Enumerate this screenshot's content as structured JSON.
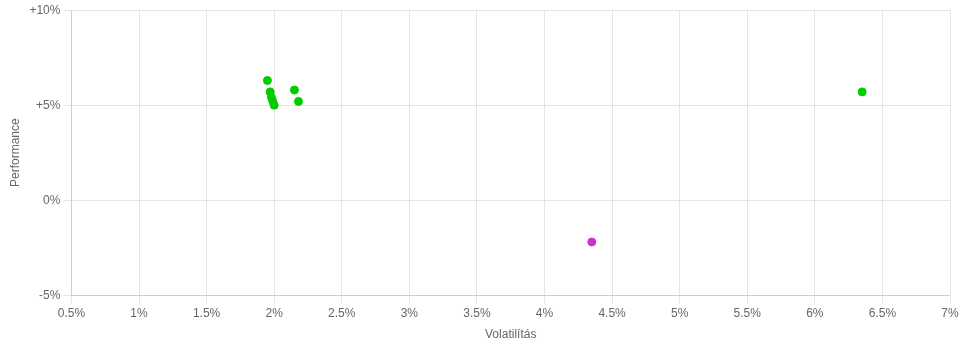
{
  "chart_data": {
    "type": "scatter",
    "xlabel": "Volatilítás",
    "ylabel": "Performance",
    "xlim": [
      0.005,
      0.07
    ],
    "ylim": [
      -0.05,
      0.1
    ],
    "xticks": [
      {
        "value": 0.005,
        "label": "0.5%"
      },
      {
        "value": 0.01,
        "label": "1%"
      },
      {
        "value": 0.015,
        "label": "1.5%"
      },
      {
        "value": 0.02,
        "label": "2%"
      },
      {
        "value": 0.025,
        "label": "2.5%"
      },
      {
        "value": 0.03,
        "label": "3%"
      },
      {
        "value": 0.035,
        "label": "3.5%"
      },
      {
        "value": 0.04,
        "label": "4%"
      },
      {
        "value": 0.045,
        "label": "4.5%"
      },
      {
        "value": 0.05,
        "label": "5%"
      },
      {
        "value": 0.055,
        "label": "5.5%"
      },
      {
        "value": 0.06,
        "label": "6%"
      },
      {
        "value": 0.065,
        "label": "6.5%"
      },
      {
        "value": 0.07,
        "label": "7%"
      }
    ],
    "yticks": [
      {
        "value": -0.05,
        "label": "-5%"
      },
      {
        "value": 0.0,
        "label": "0%"
      },
      {
        "value": 0.05,
        "label": "+5%"
      },
      {
        "value": 0.1,
        "label": "+10%"
      }
    ],
    "grid": true,
    "series": [
      {
        "color": "#00cc00",
        "x": [
          0.0195,
          0.0197,
          0.0198,
          0.0199,
          0.02,
          0.0215,
          0.0218,
          0.0635
        ],
        "values": [
          0.063,
          0.057,
          0.054,
          0.052,
          0.05,
          0.058,
          0.052,
          0.057
        ]
      },
      {
        "color": "#cc33cc",
        "x": [
          0.0435
        ],
        "values": [
          -0.022
        ]
      }
    ]
  }
}
